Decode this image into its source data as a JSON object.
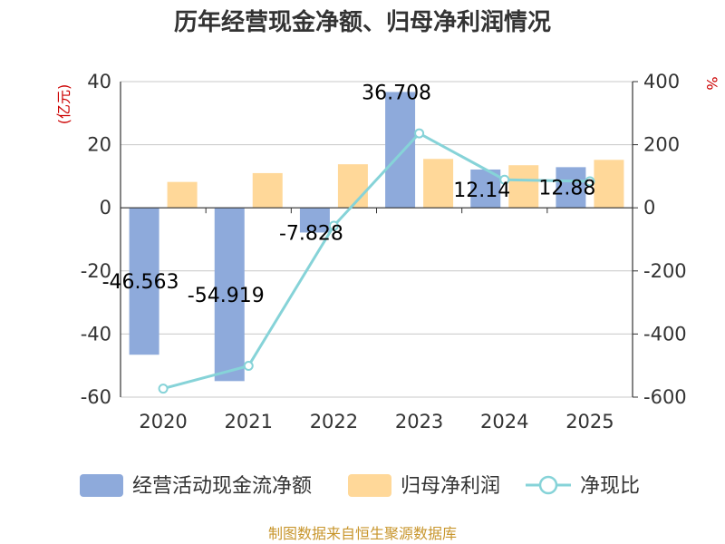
{
  "chart_data": {
    "type": "bar",
    "title": "历年经营现金净额、归母净利润情况",
    "categories": [
      "2020",
      "2021",
      "2022",
      "2023",
      "2024",
      "2025"
    ],
    "series": [
      {
        "name": "经营活动现金流净额",
        "type": "bar",
        "axis": "left",
        "color": "#8eaadb",
        "values": [
          -46.563,
          -54.919,
          -7.828,
          36.708,
          12.14,
          12.88
        ],
        "labels": [
          "-46.563",
          "-54.919",
          "-7.828",
          "36.708",
          "12.14",
          "12.88"
        ]
      },
      {
        "name": "归母净利润",
        "type": "bar",
        "axis": "left",
        "color": "#ffd899",
        "values": [
          8.2,
          11.0,
          13.8,
          15.5,
          13.5,
          15.2
        ]
      },
      {
        "name": "净现比",
        "type": "line",
        "axis": "right",
        "color": "#86d3d8",
        "values": [
          -573,
          -501,
          -57,
          236,
          89,
          84
        ]
      }
    ],
    "left_axis": {
      "unit": "(亿元)",
      "ylim": [
        -60,
        40
      ],
      "ticks": [
        -60,
        -40,
        -20,
        0,
        20,
        40
      ]
    },
    "right_axis": {
      "unit": "%",
      "ylim": [
        -600,
        400
      ],
      "ticks": [
        -600,
        -400,
        -200,
        0,
        200,
        400
      ]
    },
    "grid": true,
    "legend_position": "bottom"
  },
  "source_text": "制图数据来自恒生聚源数据库"
}
